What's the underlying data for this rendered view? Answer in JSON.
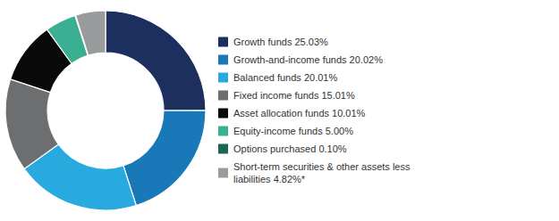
{
  "chart_data": {
    "type": "donut",
    "categories": [
      "Growth funds 25.03%",
      "Growth-and-income funds 20.02%",
      "Balanced funds 20.01%",
      "Fixed income funds 15.01%",
      "Asset allocation funds 10.01%",
      "Equity-income funds 5.00%",
      "Options purchased 0.10%",
      "Short-term securities & other assets less\nliabilities 4.82%*"
    ],
    "values": [
      25.03,
      20.02,
      20.01,
      15.01,
      10.01,
      5.0,
      0.1,
      4.82
    ],
    "colors": [
      "#1c2f5e",
      "#1878b8",
      "#29aadf",
      "#6d6e70",
      "#0a0a0a",
      "#3aaf91",
      "#1a6655",
      "#9a9b9d"
    ],
    "legend": "right"
  }
}
